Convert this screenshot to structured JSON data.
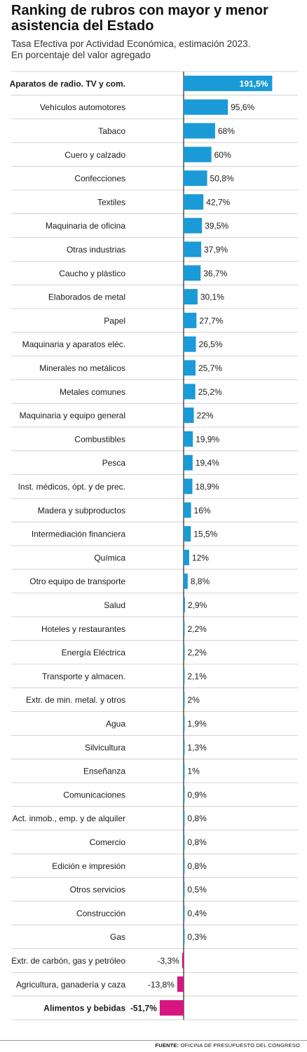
{
  "chart_data": {
    "type": "bar",
    "orientation": "horizontal",
    "title": "Ranking de rubros con mayor y menor asistencia del Estado",
    "subtitle": [
      "Tasa Efectiva por Actividad Económica, estimación 2023.",
      "En porcentaje del valor agregado"
    ],
    "categories": [
      "Aparatos de radio. TV y com.",
      "Vehículos automotores",
      "Tabaco",
      "Cuero y calzado",
      "Confecciones",
      "Textiles",
      "Maquinaria de oficina",
      "Otras industrias",
      "Caucho y plástico",
      "Elaborados de metal",
      "Papel",
      "Maquinaria y aparatos eléc.",
      "Minerales no metálicos",
      "Metales comunes",
      "Maquinaria y equipo general",
      "Combustibles",
      "Pesca",
      "Inst. médicos, ópt. y de prec.",
      "Madera y subproductos",
      "Intermediación financiera",
      "Química",
      "Otro equipo de transporte",
      "Salud",
      "Hoteles y restaurantes",
      "Energía Eléctrica",
      "Transporte y almacen.",
      "Extr. de min. metal. y otros",
      "Agua",
      "Silvicultura",
      "Enseñanza",
      "Comunicaciones",
      "Act. inmob., emp. y de alquiler",
      "Comercio",
      "Edición e impresión",
      "Otros servicios",
      "Construcción",
      "Gas",
      "Extr. de carbón, gas y petróleo",
      "Agricultura, ganadería y caza",
      "Alimentos y bebidas"
    ],
    "values": [
      191.5,
      95.6,
      68,
      60,
      50.8,
      42.7,
      39.5,
      37.9,
      36.7,
      30.1,
      27.7,
      26.5,
      25.7,
      25.2,
      22,
      19.9,
      19.4,
      18.9,
      16,
      15.5,
      12,
      8.8,
      2.9,
      2.2,
      2.2,
      2.1,
      2,
      1.9,
      1.3,
      1,
      0.9,
      0.8,
      0.8,
      0.8,
      0.5,
      0.4,
      0.3,
      -3.3,
      -13.8,
      -51.7
    ],
    "value_labels": [
      "191,5%",
      "95,6%",
      "68%",
      "60%",
      "50,8%",
      "42,7%",
      "39,5%",
      "37,9%",
      "36,7%",
      "30,1%",
      "27,7%",
      "26,5%",
      "25,7%",
      "25,2%",
      "22%",
      "19,9%",
      "19,4%",
      "18,9%",
      "16%",
      "15,5%",
      "12%",
      "8,8%",
      "2,9%",
      "2,2%",
      "2,2%",
      "2,1%",
      "2%",
      "1,9%",
      "1,3%",
      "1%",
      "0,9%",
      "0,8%",
      "0,8%",
      "0,8%",
      "0,5%",
      "0,4%",
      "0,3%",
      "-3,3%",
      "-13,8%",
      "-51,7%"
    ],
    "highlight_first": true,
    "highlight_last": true,
    "colors": {
      "positive": "#1a9ad6",
      "negative": "#d6157f",
      "text": "#1a1a1a",
      "grid": "#c8c8c8",
      "axis": "#222222"
    }
  },
  "footer": {
    "source_label": "FUENTE:",
    "source_text": "OFICINA DE PRESUPUESTO DEL CONGRESO"
  }
}
